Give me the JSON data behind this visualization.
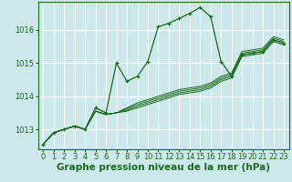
{
  "background_color": "#cce8ea",
  "grid_color": "#ffffff",
  "line_color": "#1a6b1a",
  "xlabel": "Graphe pression niveau de la mer (hPa)",
  "xlabel_fontsize": 7.5,
  "tick_fontsize": 6,
  "ylim": [
    1012.4,
    1016.85
  ],
  "xlim": [
    -0.5,
    23.5
  ],
  "yticks": [
    1013,
    1014,
    1015,
    1016
  ],
  "xticks": [
    0,
    1,
    2,
    3,
    4,
    5,
    6,
    7,
    8,
    9,
    10,
    11,
    12,
    13,
    14,
    15,
    16,
    17,
    18,
    19,
    20,
    21,
    22,
    23
  ],
  "main_line": [
    1012.55,
    1012.9,
    1013.0,
    1013.1,
    1013.0,
    1013.65,
    1013.5,
    1015.0,
    1014.45,
    1014.6,
    1015.05,
    1016.1,
    1016.2,
    1016.35,
    1016.5,
    1016.68,
    1016.4,
    1015.05,
    1014.6,
    1015.25,
    1015.3,
    1015.35,
    1015.7,
    1015.6
  ],
  "band_lines": [
    [
      1012.55,
      1012.9,
      1013.0,
      1013.1,
      1013.0,
      1013.55,
      1013.45,
      1013.5,
      1013.55,
      1013.65,
      1013.75,
      1013.85,
      1013.95,
      1014.05,
      1014.1,
      1014.15,
      1014.25,
      1014.45,
      1014.55,
      1015.2,
      1015.25,
      1015.3,
      1015.65,
      1015.55
    ],
    [
      1012.55,
      1012.9,
      1013.0,
      1013.1,
      1013.0,
      1013.55,
      1013.45,
      1013.5,
      1013.58,
      1013.7,
      1013.8,
      1013.9,
      1014.0,
      1014.1,
      1014.15,
      1014.2,
      1014.3,
      1014.5,
      1014.6,
      1015.25,
      1015.3,
      1015.35,
      1015.7,
      1015.6
    ],
    [
      1012.55,
      1012.9,
      1013.0,
      1013.1,
      1013.0,
      1013.55,
      1013.45,
      1013.5,
      1013.62,
      1013.75,
      1013.85,
      1013.95,
      1014.05,
      1014.15,
      1014.2,
      1014.25,
      1014.35,
      1014.55,
      1014.65,
      1015.3,
      1015.35,
      1015.4,
      1015.75,
      1015.65
    ],
    [
      1012.55,
      1012.9,
      1013.0,
      1013.1,
      1013.0,
      1013.55,
      1013.45,
      1013.5,
      1013.65,
      1013.8,
      1013.9,
      1014.0,
      1014.1,
      1014.2,
      1014.25,
      1014.3,
      1014.4,
      1014.6,
      1014.7,
      1015.35,
      1015.4,
      1015.45,
      1015.8,
      1015.7
    ]
  ]
}
